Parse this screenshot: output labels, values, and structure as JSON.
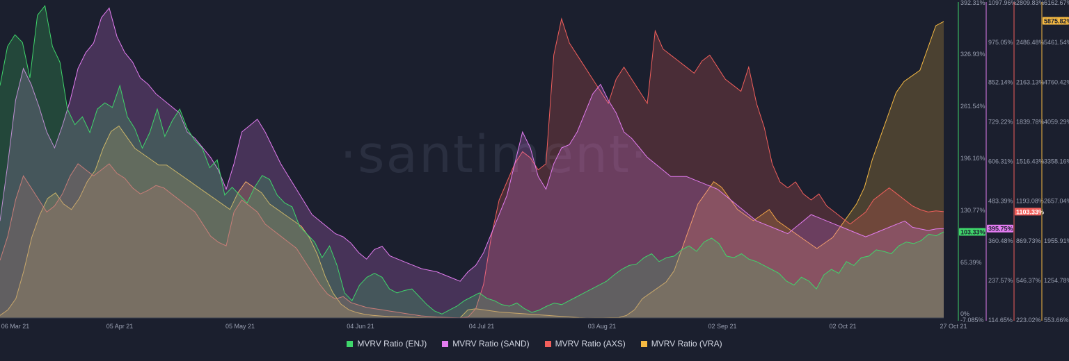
{
  "chart_data": {
    "type": "area",
    "watermark": "·santiment·",
    "x_labels": [
      "06 Mar 21",
      "05 Apr 21",
      "05 May 21",
      "04 Jun 21",
      "04 Jul 21",
      "03 Aug 21",
      "02 Sep 21",
      "02 Oct 21",
      "27 Oct 21"
    ],
    "axes": [
      {
        "id": "enj",
        "ticks": [
          "392.31%",
          "326.93%",
          "261.54%",
          "196.16%",
          "130.77%",
          "65.39%",
          "0%",
          "-7.085%"
        ],
        "current": "103.33%",
        "color": "#3fd66b"
      },
      {
        "id": "sand",
        "ticks": [
          "1097.96%",
          "975.05%",
          "852.14%",
          "729.22%",
          "606.31%",
          "483.39%",
          "360.48%",
          "237.57%",
          "114.65%"
        ],
        "current": "395.75%",
        "color": "#e37cf0"
      },
      {
        "id": "axs",
        "ticks": [
          "2809.83%",
          "2486.48%",
          "2163.13%",
          "1839.78%",
          "1516.43%",
          "1193.08%",
          "869.73%",
          "546.37%",
          "223.02%"
        ],
        "current": "1103.33%",
        "color": "#f25f5c"
      },
      {
        "id": "vra",
        "ticks": [
          "6162.67%",
          "5461.54%",
          "4760.42%",
          "4059.29%",
          "3358.16%",
          "2657.04%",
          "1955.91%",
          "1254.78%",
          "553.66%"
        ],
        "current": "5875.82%",
        "color": "#f5b942"
      }
    ],
    "series": [
      {
        "name": "MVRV Ratio (ENJ)",
        "color": "#3fd66b",
        "values": [
          290,
          340,
          355,
          345,
          300,
          380,
          392,
          340,
          320,
          260,
          240,
          250,
          230,
          260,
          268,
          262,
          290,
          250,
          235,
          210,
          230,
          260,
          225,
          245,
          260,
          235,
          220,
          210,
          185,
          195,
          150,
          160,
          150,
          140,
          160,
          175,
          170,
          150,
          140,
          135,
          110,
          100,
          90,
          70,
          85,
          60,
          25,
          15,
          35,
          45,
          50,
          45,
          30,
          25,
          28,
          30,
          20,
          10,
          2,
          -2,
          3,
          8,
          15,
          20,
          25,
          18,
          15,
          10,
          8,
          12,
          5,
          0,
          3,
          8,
          12,
          10,
          15,
          20,
          25,
          30,
          35,
          40,
          48,
          55,
          60,
          62,
          70,
          75,
          65,
          70,
          72,
          80,
          85,
          78,
          90,
          95,
          88,
          72,
          70,
          75,
          68,
          65,
          60,
          55,
          50,
          40,
          35,
          45,
          40,
          30,
          48,
          55,
          50,
          65,
          60,
          70,
          72,
          80,
          78,
          75,
          85,
          90,
          88,
          92,
          100,
          98,
          103
        ]
      },
      {
        "name": "MVRV Ratio (SAND)",
        "color": "#e37cf0",
        "values": [
          420,
          600,
          800,
          900,
          850,
          780,
          700,
          650,
          720,
          800,
          900,
          950,
          980,
          1060,
          1090,
          1000,
          950,
          920,
          870,
          850,
          820,
          800,
          780,
          760,
          700,
          680,
          650,
          620,
          580,
          520,
          600,
          700,
          720,
          740,
          700,
          650,
          600,
          560,
          520,
          480,
          440,
          420,
          400,
          380,
          370,
          350,
          320,
          300,
          330,
          340,
          310,
          300,
          290,
          280,
          270,
          265,
          260,
          250,
          240,
          230,
          260,
          280,
          320,
          380,
          440,
          500,
          600,
          700,
          650,
          560,
          520,
          600,
          650,
          660,
          700,
          760,
          820,
          850,
          800,
          760,
          700,
          680,
          650,
          620,
          600,
          580,
          560,
          560,
          560,
          550,
          540,
          530,
          520,
          500,
          480,
          460,
          440,
          420,
          410,
          400,
          390,
          380,
          400,
          420,
          440,
          430,
          420,
          410,
          400,
          390,
          380,
          370,
          380,
          390,
          400,
          410,
          420,
          400,
          395,
          390,
          395,
          396
        ]
      },
      {
        "name": "MVRV Ratio (AXS)",
        "color": "#f25f5c",
        "values": [
          700,
          900,
          1200,
          1400,
          1300,
          1200,
          1100,
          1150,
          1250,
          1400,
          1500,
          1450,
          1400,
          1450,
          1500,
          1420,
          1380,
          1300,
          1250,
          1280,
          1320,
          1300,
          1250,
          1200,
          1150,
          1100,
          1000,
          900,
          850,
          820,
          1100,
          1200,
          1150,
          1100,
          1000,
          950,
          900,
          850,
          800,
          700,
          600,
          500,
          420,
          380,
          400,
          350,
          330,
          310,
          300,
          290,
          280,
          270,
          260,
          250,
          240,
          235,
          230,
          228,
          226,
          224,
          230,
          300,
          500,
          900,
          1200,
          1350,
          1500,
          1600,
          1550,
          1450,
          1500,
          2400,
          2700,
          2500,
          2400,
          2300,
          2200,
          2100,
          2000,
          2200,
          2300,
          2200,
          2100,
          2000,
          2600,
          2450,
          2400,
          2350,
          2300,
          2250,
          2350,
          2400,
          2300,
          2200,
          2150,
          2100,
          2300,
          2000,
          1800,
          1500,
          1350,
          1300,
          1350,
          1250,
          1200,
          1250,
          1150,
          1100,
          1050,
          1000,
          1050,
          1100,
          1200,
          1250,
          1300,
          1250,
          1200,
          1150,
          1120,
          1100,
          1110,
          1103
        ]
      },
      {
        "name": "MVRV Ratio (VRA)",
        "color": "#f5b942",
        "values": [
          600,
          700,
          900,
          1400,
          2000,
          2400,
          2700,
          2800,
          2600,
          2500,
          2700,
          3000,
          3200,
          3600,
          3900,
          4000,
          3800,
          3600,
          3500,
          3400,
          3300,
          3300,
          3200,
          3100,
          3000,
          2900,
          2800,
          2700,
          2600,
          2500,
          2800,
          3000,
          2900,
          2800,
          2600,
          2500,
          2400,
          2300,
          2200,
          2000,
          1700,
          1300,
          1000,
          800,
          700,
          650,
          620,
          600,
          590,
          580,
          575,
          570,
          565,
          560,
          558,
          556,
          555,
          554,
          553,
          700,
          720,
          700,
          680,
          660,
          650,
          640,
          630,
          620,
          610,
          600,
          590,
          580,
          570,
          560,
          555,
          556,
          558,
          560,
          560,
          600,
          700,
          900,
          1000,
          1100,
          1200,
          1400,
          1800,
          2200,
          2600,
          2800,
          3000,
          2900,
          2700,
          2500,
          2400,
          2300,
          2400,
          2500,
          2300,
          2200,
          2100,
          2000,
          1900,
          1800,
          1900,
          2000,
          2200,
          2400,
          2600,
          2900,
          3400,
          3800,
          4200,
          4600,
          4800,
          4900,
          5000,
          5400,
          5800,
          5876
        ]
      }
    ]
  },
  "legend": [
    {
      "label": "MVRV Ratio (ENJ)",
      "color": "#3fd66b"
    },
    {
      "label": "MVRV Ratio (SAND)",
      "color": "#e37cf0"
    },
    {
      "label": "MVRV Ratio (AXS)",
      "color": "#f25f5c"
    },
    {
      "label": "MVRV Ratio (VRA)",
      "color": "#f5b942"
    }
  ]
}
